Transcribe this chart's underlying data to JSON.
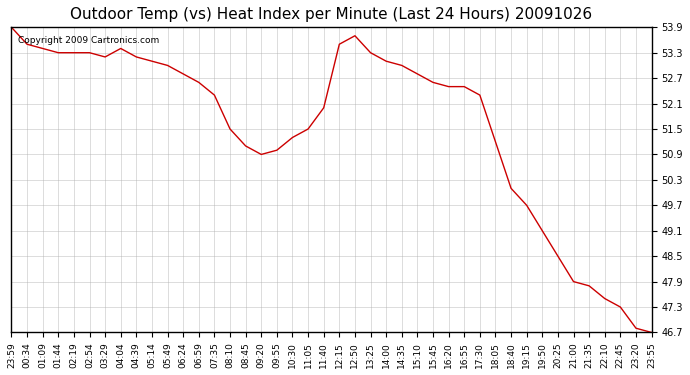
{
  "title": "Outdoor Temp (vs) Heat Index per Minute (Last 24 Hours) 20091026",
  "copyright_text": "Copyright 2009 Cartronics.com",
  "line_color": "#cc0000",
  "background_color": "#ffffff",
  "grid_color": "#aaaaaa",
  "ylim": [
    46.7,
    53.9
  ],
  "yticks": [
    46.7,
    47.3,
    47.9,
    48.5,
    49.1,
    49.7,
    50.3,
    50.9,
    51.5,
    52.1,
    52.7,
    53.3,
    53.9
  ],
  "xtick_labels": [
    "23:59",
    "00:34",
    "01:09",
    "01:44",
    "02:19",
    "02:54",
    "03:29",
    "04:04",
    "04:39",
    "05:14",
    "05:49",
    "06:24",
    "06:59",
    "07:35",
    "08:10",
    "08:45",
    "09:20",
    "09:55",
    "10:30",
    "11:05",
    "11:40",
    "12:15",
    "12:50",
    "13:25",
    "14:00",
    "14:35",
    "15:10",
    "15:45",
    "16:20",
    "16:55",
    "17:30",
    "18:05",
    "18:40",
    "19:15",
    "19:50",
    "20:25",
    "21:00",
    "21:35",
    "22:10",
    "22:45",
    "23:20",
    "23:55"
  ],
  "data_x": [
    0,
    1,
    2,
    3,
    4,
    5,
    6,
    7,
    8,
    9,
    10,
    11,
    12,
    13,
    14,
    15,
    16,
    17,
    18,
    19,
    20,
    21,
    22,
    23,
    24,
    25,
    26,
    27,
    28,
    29,
    30,
    31,
    32,
    33,
    34,
    35,
    36,
    37,
    38,
    39,
    40,
    41
  ],
  "data_y": [
    53.9,
    53.5,
    53.4,
    53.3,
    53.3,
    53.3,
    53.2,
    53.4,
    53.2,
    53.1,
    53.0,
    52.8,
    52.6,
    52.3,
    51.5,
    51.1,
    50.9,
    51.0,
    51.3,
    51.5,
    52.0,
    53.5,
    53.7,
    53.3,
    53.1,
    53.0,
    52.8,
    52.6,
    52.5,
    52.5,
    52.3,
    51.2,
    50.1,
    49.7,
    49.1,
    48.5,
    47.9,
    47.8,
    47.5,
    47.3,
    46.8,
    46.7
  ]
}
